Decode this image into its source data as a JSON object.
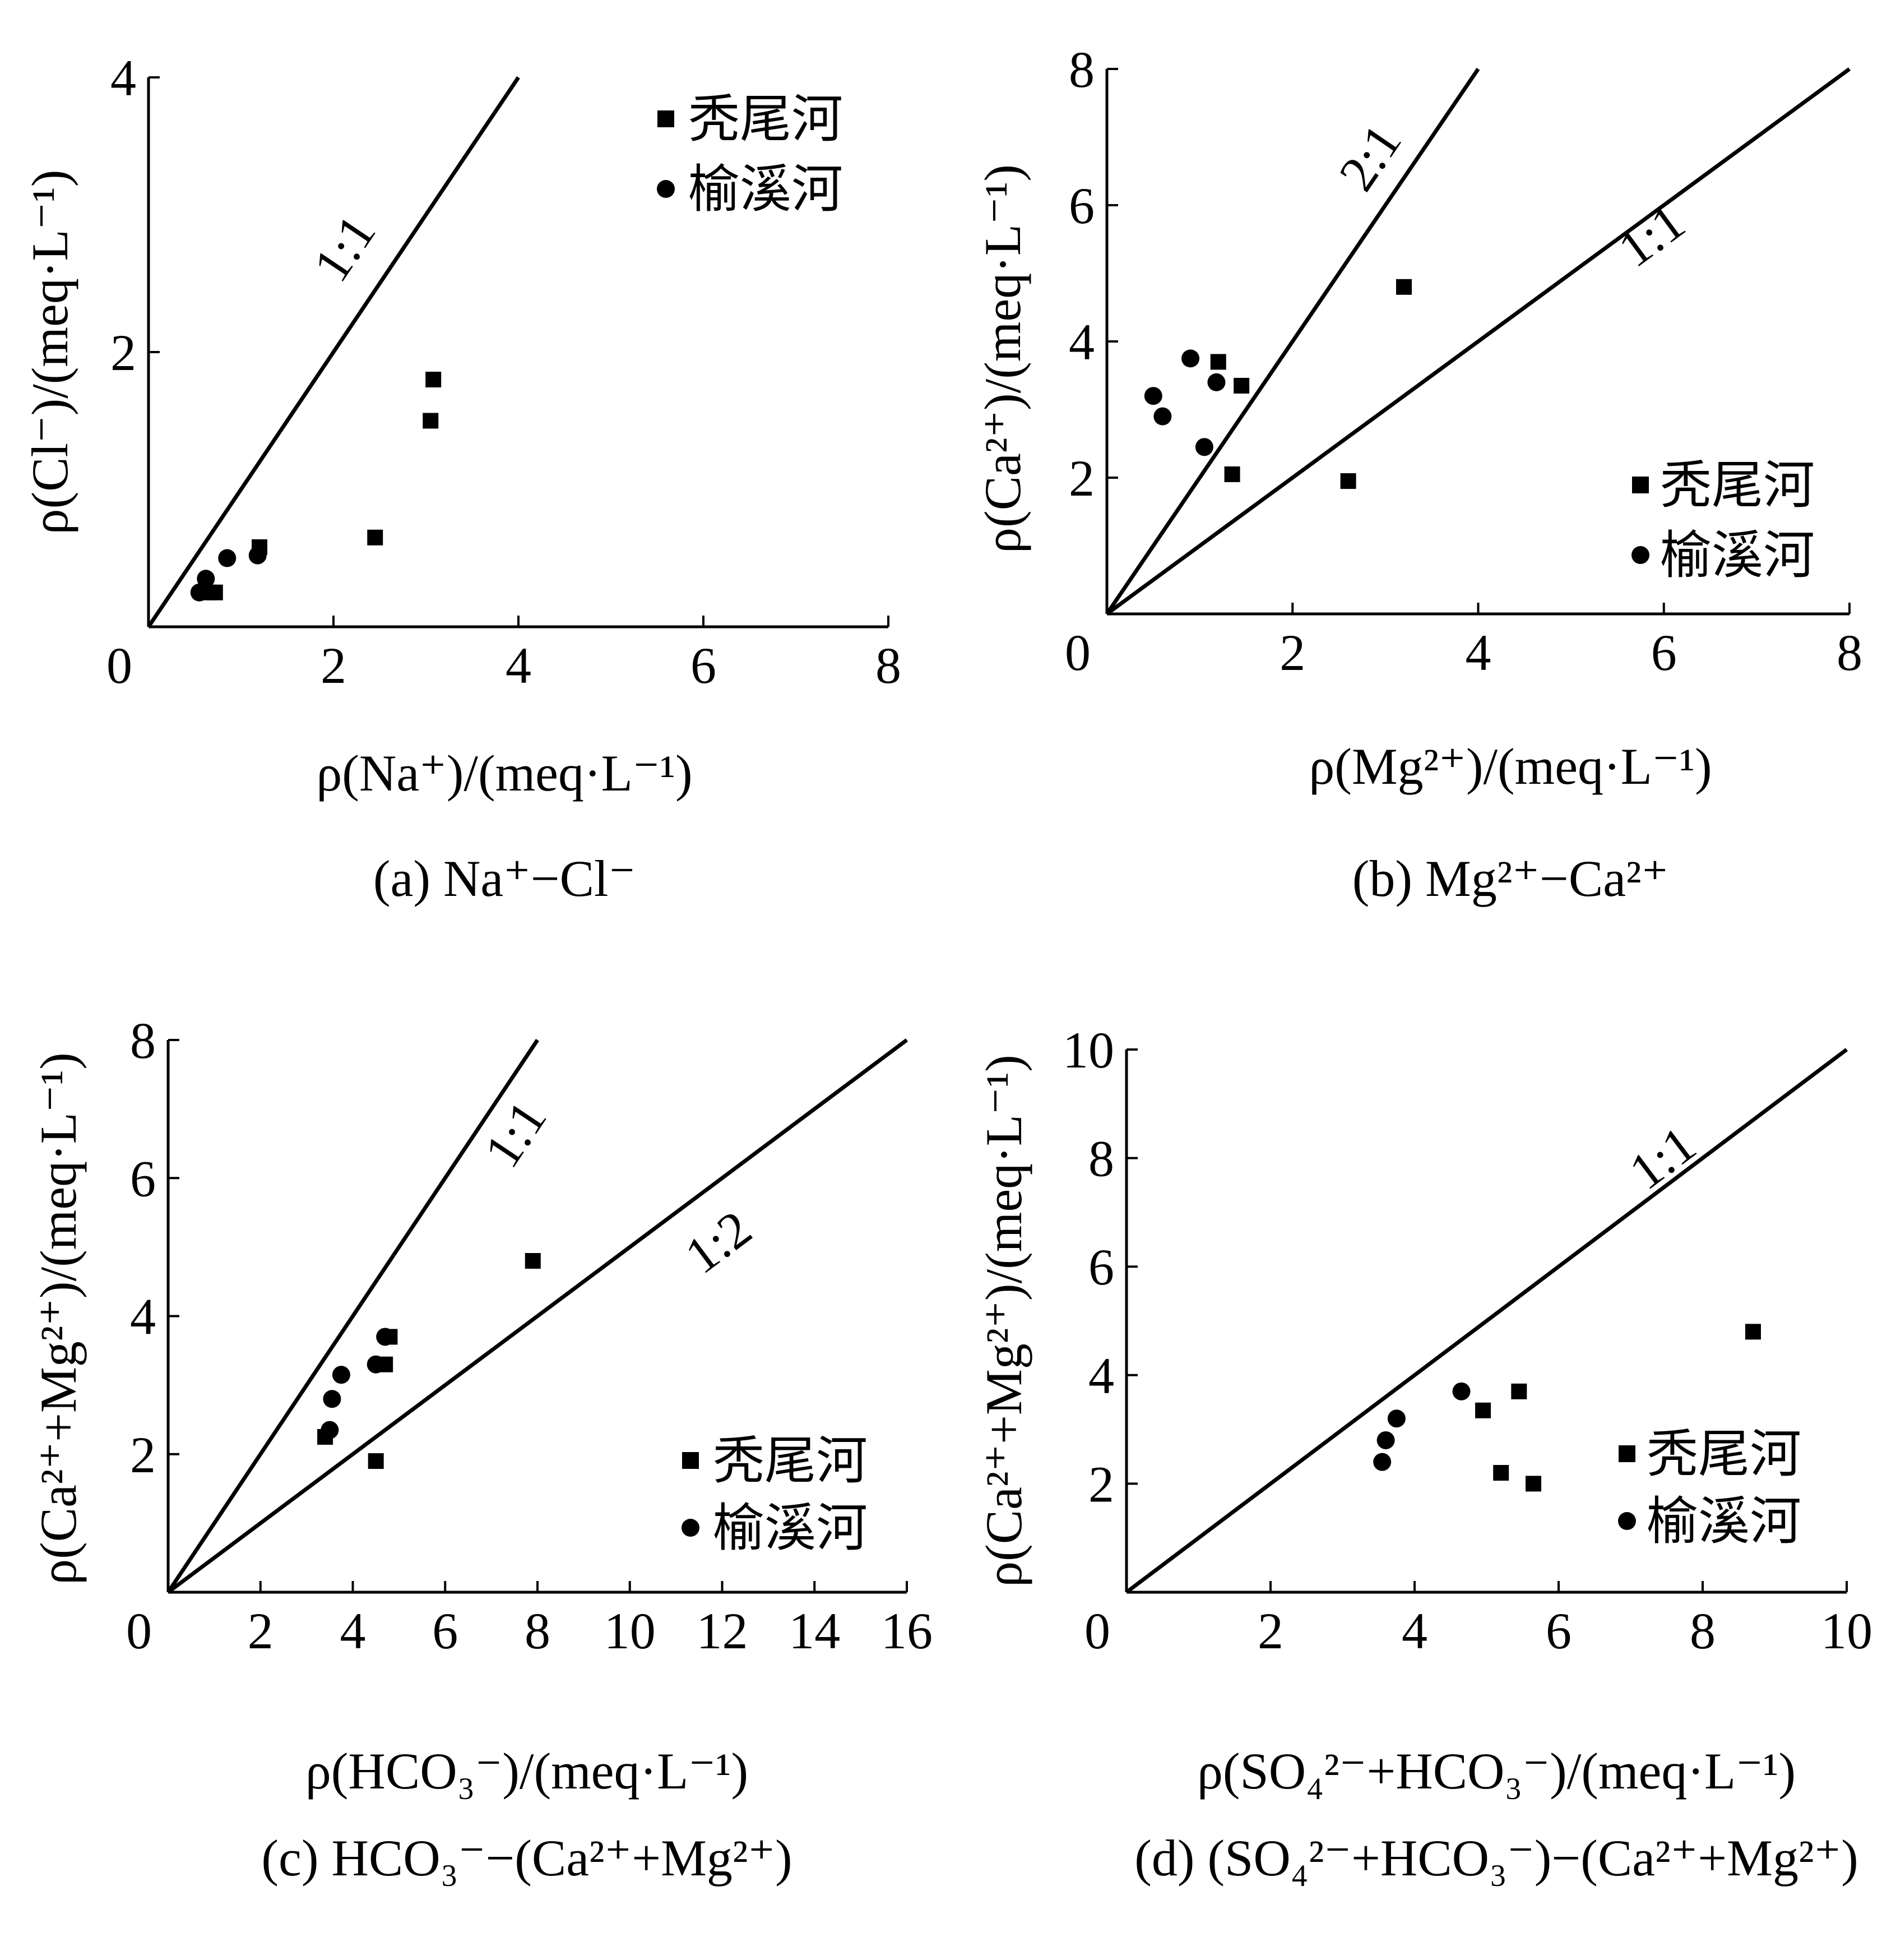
{
  "chart_data": [
    {
      "id": "a",
      "type": "scatter",
      "caption": "(a)  Na⁺−Cl⁻",
      "xlabel": "ρ(Na⁺)/(meq·L⁻¹)",
      "ylabel": "ρ(Cl⁻)/(meq·L⁻¹)",
      "xlim": [
        0,
        8
      ],
      "ylim": [
        0,
        4
      ],
      "xticks": [
        0,
        2,
        4,
        6,
        8
      ],
      "yticks": [
        2,
        4
      ],
      "legend_position": "top-right",
      "reference_lines": [
        {
          "label": "1:1",
          "slope": 1
        }
      ],
      "series": [
        {
          "name": "秃尾河",
          "marker": "square",
          "points": [
            [
              0.65,
              0.25
            ],
            [
              0.72,
              0.25
            ],
            [
              1.2,
              0.58
            ],
            [
              2.45,
              0.65
            ],
            [
              3.05,
              1.5
            ],
            [
              3.08,
              1.8
            ]
          ]
        },
        {
          "name": "榆溪河",
          "marker": "circle",
          "points": [
            [
              0.55,
              0.25
            ],
            [
              0.62,
              0.35
            ],
            [
              0.85,
              0.5
            ],
            [
              1.18,
              0.52
            ]
          ]
        }
      ]
    },
    {
      "id": "b",
      "type": "scatter",
      "caption": "(b)  Mg²⁺−Ca²⁺",
      "xlabel": "ρ(Mg²⁺)/(meq·L⁻¹)",
      "ylabel": "ρ(Ca²⁺)/(meq·L⁻¹)",
      "xlim": [
        0,
        8
      ],
      "ylim": [
        0,
        8
      ],
      "xticks": [
        0,
        2,
        4,
        6,
        8
      ],
      "yticks": [
        2,
        4,
        6,
        8
      ],
      "legend_position": "bottom-right",
      "reference_lines": [
        {
          "label": "2:1",
          "slope": 2
        },
        {
          "label": "1:1",
          "slope": 1
        }
      ],
      "series": [
        {
          "name": "秃尾河",
          "marker": "square",
          "points": [
            [
              1.2,
              3.7
            ],
            [
              1.45,
              3.35
            ],
            [
              1.35,
              2.05
            ],
            [
              2.6,
              1.95
            ],
            [
              3.2,
              4.8
            ]
          ]
        },
        {
          "name": "榆溪河",
          "marker": "circle",
          "points": [
            [
              0.5,
              3.2
            ],
            [
              0.6,
              2.9
            ],
            [
              0.9,
              3.75
            ],
            [
              1.18,
              3.4
            ],
            [
              1.05,
              2.45
            ]
          ]
        }
      ]
    },
    {
      "id": "c",
      "type": "scatter",
      "caption": "(c)  HCO₃⁻−(Ca²⁺+Mg²⁺)",
      "xlabel": "ρ(HCO₃⁻)/(meq·L⁻¹)",
      "ylabel": "ρ(Ca²⁺+Mg²⁺)/(meq·L⁻¹)",
      "xlim": [
        0,
        16
      ],
      "ylim": [
        0,
        8
      ],
      "xticks": [
        0,
        2,
        4,
        6,
        8,
        10,
        12,
        14,
        16
      ],
      "yticks": [
        2,
        4,
        6,
        8
      ],
      "legend_position": "bottom-right",
      "reference_lines": [
        {
          "label": "1:1",
          "slope": 1
        },
        {
          "label": "1:2",
          "slope": 0.5
        }
      ],
      "series": [
        {
          "name": "秃尾河",
          "marker": "square",
          "points": [
            [
              3.4,
              2.25
            ],
            [
              4.5,
              1.9
            ],
            [
              4.7,
              3.3
            ],
            [
              4.8,
              3.7
            ],
            [
              7.9,
              4.8
            ]
          ]
        },
        {
          "name": "榆溪河",
          "marker": "circle",
          "points": [
            [
              3.5,
              2.35
            ],
            [
              3.55,
              2.8
            ],
            [
              3.75,
              3.15
            ],
            [
              4.5,
              3.3
            ],
            [
              4.7,
              3.7
            ]
          ]
        }
      ]
    },
    {
      "id": "d",
      "type": "scatter",
      "caption": "(d)  (SO₄²⁻+HCO₃⁻)−(Ca²⁺+Mg²⁺)",
      "xlabel": "ρ(SO₄²⁻+HCO₃⁻)/(meq·L⁻¹)",
      "ylabel": "ρ(Ca²⁺+Mg²⁺)/(meq·L⁻¹)",
      "xlim": [
        0,
        10
      ],
      "ylim": [
        0,
        10
      ],
      "xticks": [
        0,
        2,
        4,
        6,
        8,
        10
      ],
      "yticks": [
        2,
        4,
        6,
        8,
        10
      ],
      "legend_position": "bottom-right",
      "reference_lines": [
        {
          "label": "1:1",
          "slope": 1
        }
      ],
      "series": [
        {
          "name": "秃尾河",
          "marker": "square",
          "points": [
            [
              4.95,
              3.35
            ],
            [
              5.45,
              3.7
            ],
            [
              5.2,
              2.2
            ],
            [
              5.65,
              2.0
            ],
            [
              8.7,
              4.8
            ]
          ]
        },
        {
          "name": "榆溪河",
          "marker": "circle",
          "points": [
            [
              3.55,
              2.4
            ],
            [
              3.6,
              2.8
            ],
            [
              3.75,
              3.2
            ],
            [
              4.65,
              3.7
            ]
          ]
        }
      ]
    }
  ]
}
